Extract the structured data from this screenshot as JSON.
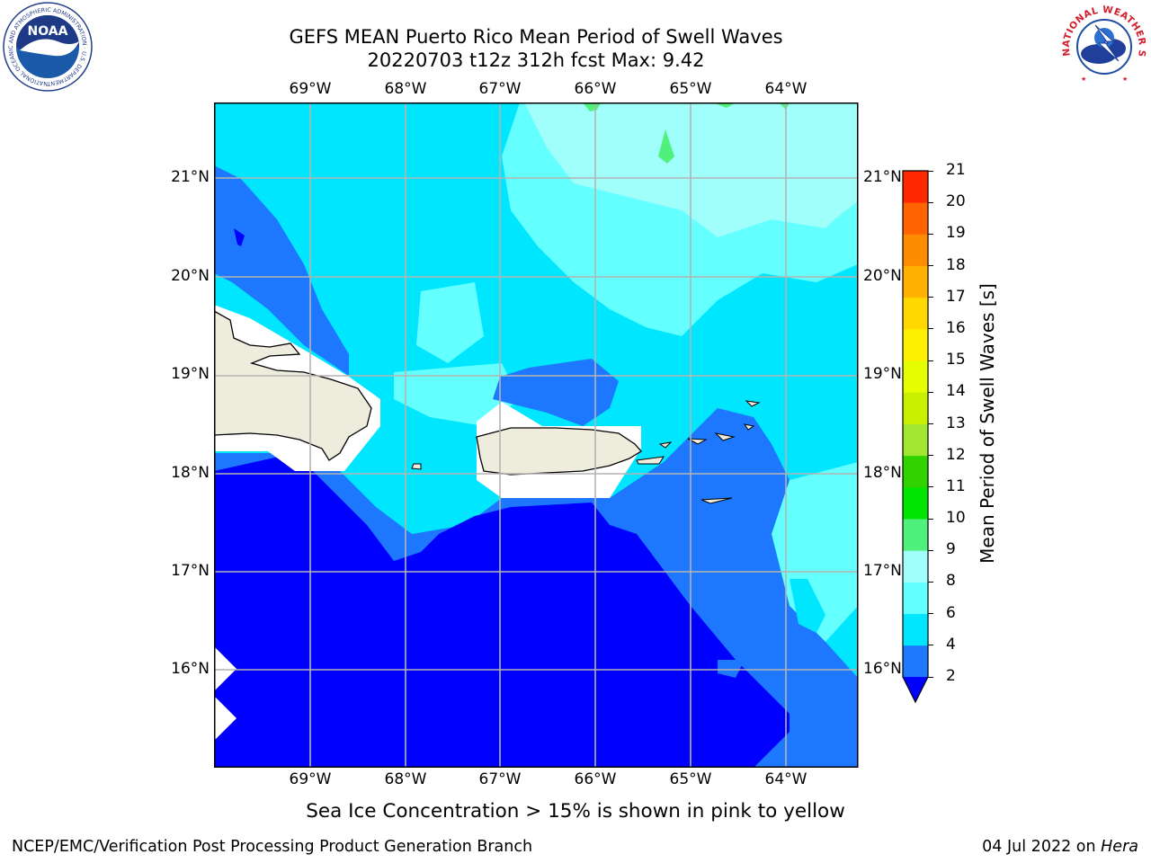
{
  "header": {
    "title_line1": "GEFS MEAN Puerto Rico Mean Period of Swell Waves",
    "title_line2": "20220703 t12z 312h fcst   Max: 9.42"
  },
  "logos": {
    "left": {
      "name": "noaa-logo",
      "text": "NOAA",
      "ring_text": "NATIONAL OCEANIC AND ATMOSPHERIC ADMINISTRATION · U.S. DEPARTMENT OF COMMERCE"
    },
    "right": {
      "name": "nws-logo",
      "ring_text": "NATIONAL WEATHER SERVICE"
    }
  },
  "map": {
    "lon_labels": [
      "69°W",
      "68°W",
      "67°W",
      "66°W",
      "65°W",
      "64°W"
    ],
    "lat_labels": [
      "21°N",
      "20°N",
      "19°N",
      "18°N",
      "17°N",
      "16°N"
    ],
    "colors": {
      "land": "#eeecdc",
      "grid": "#b4b4b4",
      "coast": "#000000"
    }
  },
  "colorbar": {
    "label": "Mean Period of Swell Waves [s]",
    "ticks": [
      "2",
      "4",
      "6",
      "8",
      "9",
      "10",
      "11",
      "12",
      "13",
      "14",
      "15",
      "16",
      "17",
      "18",
      "19",
      "20",
      "21"
    ],
    "colors": [
      "#1e78ff",
      "#00e6ff",
      "#64ffff",
      "#a0fffa",
      "#50f07c",
      "#00e600",
      "#32d200",
      "#a0e632",
      "#c8f000",
      "#e6ff00",
      "#fff000",
      "#ffd800",
      "#ffb000",
      "#ff8c00",
      "#ff6400",
      "#ff2800",
      "#ff0000"
    ],
    "under_color": "#0000ff"
  },
  "note": "Sea Ice Concentration > 15% is shown in pink to yellow",
  "footer": {
    "left": "NCEP/EMC/Verification Post Processing Product Generation Branch",
    "date": "04 Jul 2022 on ",
    "host": "Hera"
  }
}
